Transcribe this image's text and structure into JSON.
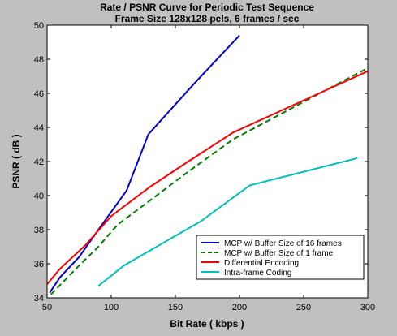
{
  "chart_data": {
    "type": "line",
    "title": "Rate / PSNR Curve for Periodic Test Sequence",
    "subtitle": "Frame Size 128x128 pels, 6 frames / sec",
    "xlabel": "Bit Rate ( kbps )",
    "ylabel": "PSNR ( dB )",
    "xlim": [
      50,
      300
    ],
    "ylim": [
      34,
      50
    ],
    "xticks": [
      50,
      100,
      150,
      200,
      250,
      300
    ],
    "yticks": [
      34,
      36,
      38,
      40,
      42,
      44,
      46,
      48,
      50
    ],
    "grid": false,
    "legend_position": "bottom-right",
    "colors": {
      "background": "#c0c0c0",
      "plot_area": "#ffffff"
    },
    "series": [
      {
        "name": "MCP w/ Buffer Size of 16 frames",
        "color": "#0000cc",
        "dash": "solid",
        "x": [
          52,
          60,
          75,
          90,
          112,
          129,
          165,
          200
        ],
        "y": [
          34.3,
          35.2,
          36.4,
          38.0,
          40.3,
          43.6,
          46.6,
          49.4
        ]
      },
      {
        "name": "MCP w/ Buffer Size of 1 frame",
        "color": "#008000",
        "dash": "dashed",
        "x": [
          53,
          75,
          90,
          105,
          130,
          160,
          195,
          230,
          270,
          298
        ],
        "y": [
          34.2,
          35.9,
          37.0,
          38.3,
          39.7,
          41.4,
          43.3,
          44.7,
          46.3,
          47.4
        ]
      },
      {
        "name": "Differential Encoding",
        "color": "#ff0000",
        "dash": "solid",
        "x": [
          50,
          60,
          80,
          100,
          130,
          160,
          195,
          230,
          265,
          300
        ],
        "y": [
          34.8,
          35.7,
          37.1,
          38.8,
          40.5,
          42.0,
          43.7,
          44.9,
          46.1,
          47.3
        ]
      },
      {
        "name": "Intra-frame Coding",
        "color": "#00c0c0",
        "dash": "solid",
        "x": [
          90,
          110,
          140,
          170,
          208,
          250,
          292
        ],
        "y": [
          34.7,
          35.9,
          37.2,
          38.5,
          40.6,
          41.4,
          42.2
        ]
      }
    ]
  }
}
